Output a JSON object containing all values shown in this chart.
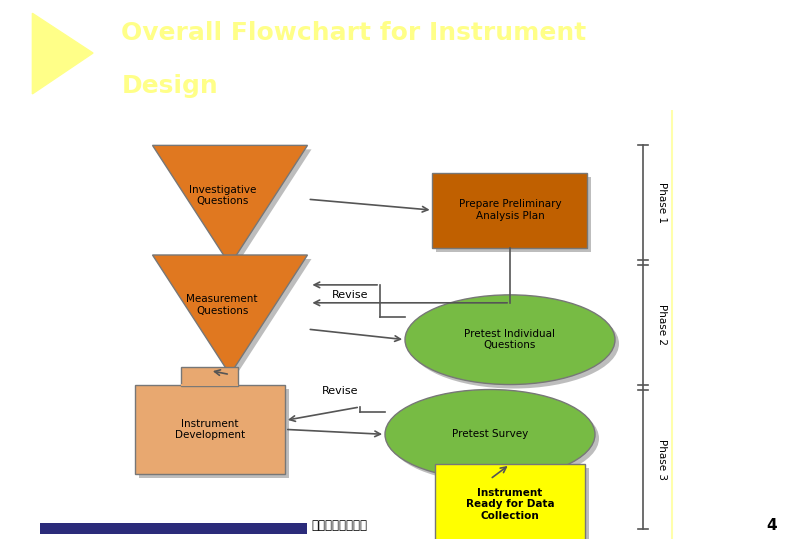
{
  "title_line1": "Overall Flowchart for Instrument",
  "title_line2": "Design",
  "title_bg_color": "#3333AA",
  "title_text_color": "#FFFF88",
  "bg_color": "#FFFFFF",
  "content_bg": "#FFFFFF",
  "investigative_q": {
    "label": "Investigative\nQuestions",
    "color": "#E07820"
  },
  "prepare_plan": {
    "label": "Prepare Preliminary\nAnalysis Plan",
    "color": "#C06000"
  },
  "measurement_q": {
    "label": "Measurement\nQuestions",
    "color": "#E07820"
  },
  "pretest_ind": {
    "label": "Pretest Individual\nQuestions",
    "color": "#77BB44"
  },
  "instrument_dev": {
    "label": "Instrument\nDevelopment",
    "color": "#E8A870"
  },
  "pretest_survey": {
    "label": "Pretest Survey",
    "color": "#77BB44"
  },
  "instrument_ready": {
    "label": "Instrument\nReady for Data\nCollection",
    "color": "#FFFF00"
  },
  "slide_number": "4",
  "footer_text": "中央資管：範鍾強",
  "footer_bar_color": "#2B2B7A",
  "phase_line_color": "#999999",
  "arrow_color": "#555555",
  "shadow_color": "#888888",
  "border_color": "#777777",
  "revise1_text": "Revise",
  "revise2_text": "Revise",
  "phase1_text": "Phase 1",
  "phase2_text": "Phase 2",
  "phase3_text": "Phase 3"
}
